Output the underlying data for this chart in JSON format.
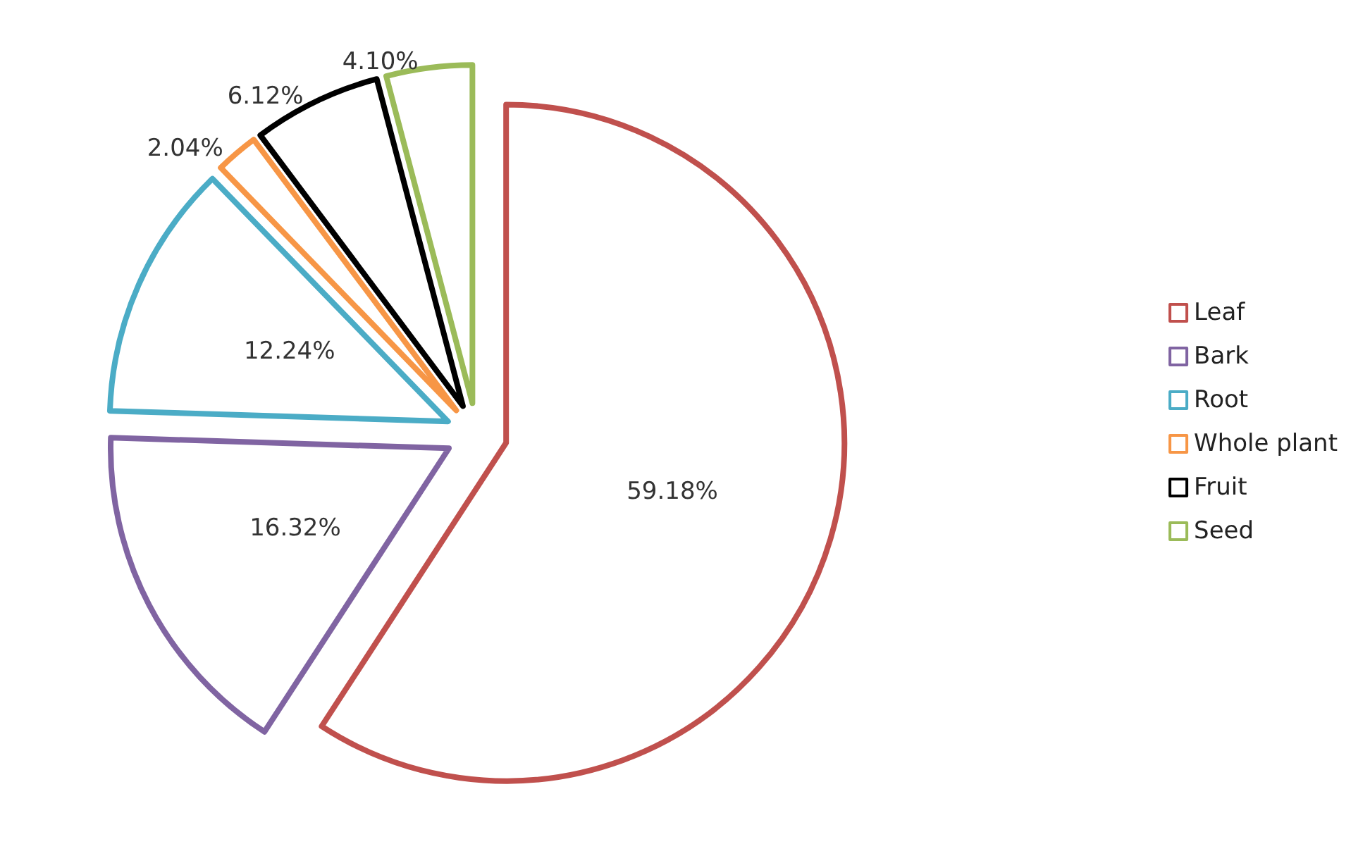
{
  "chart_data": {
    "type": "pie",
    "categories": [
      "Leaf",
      "Bark",
      "Root",
      "Whole plant",
      "Fruit",
      "Seed"
    ],
    "values": [
      59.18,
      16.32,
      12.24,
      2.04,
      6.12,
      4.1
    ],
    "value_labels": [
      "59.18%",
      "16.32%",
      "12.24%",
      "2.04%",
      "6.12%",
      "4.10%"
    ],
    "colors": [
      "#c0504d",
      "#8064a2",
      "#4bacc6",
      "#f79646",
      "#000000",
      "#9bbb59"
    ],
    "legend": "right"
  }
}
